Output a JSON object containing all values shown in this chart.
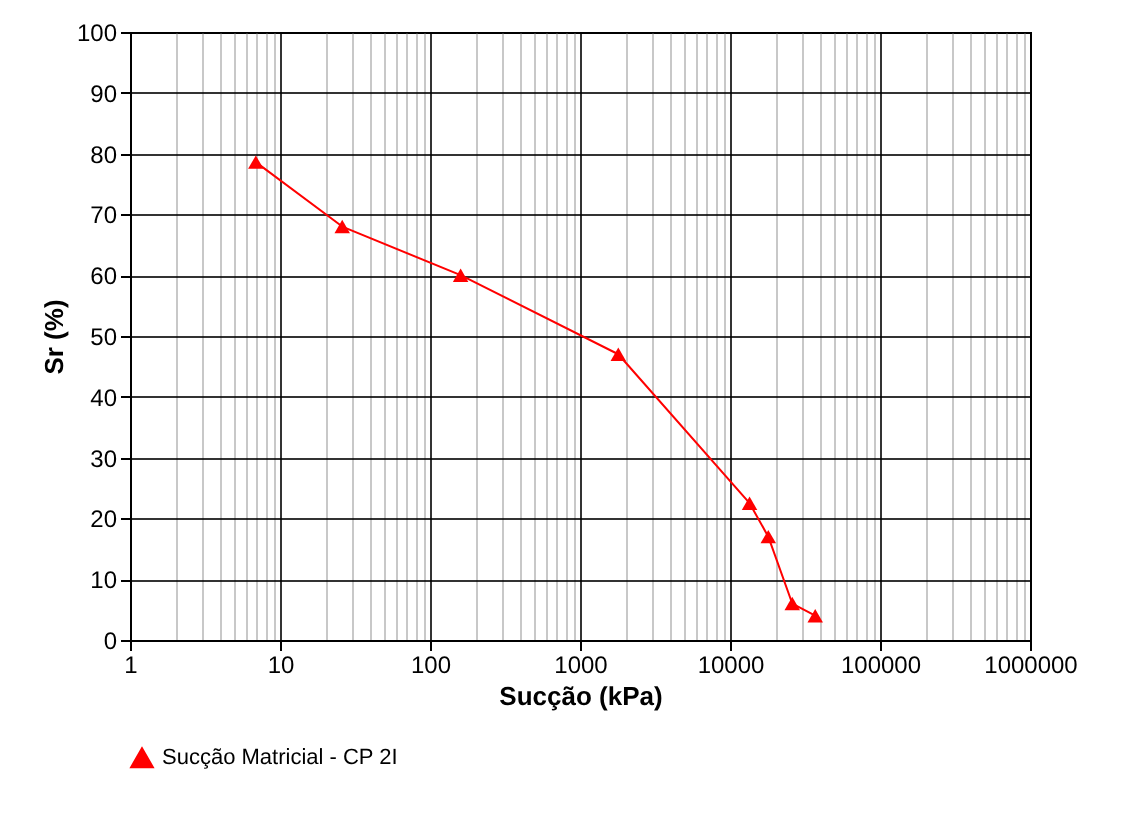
{
  "chart_data": {
    "type": "line",
    "xlabel": "Sucção (kPa)",
    "ylabel": "Sr (%)",
    "x": [
      6.9,
      26,
      160,
      1800,
      13500,
      18000,
      26000,
      37000
    ],
    "series": [
      {
        "name": "Sucção Matricial - CP 2I",
        "color": "#ff0000",
        "values": [
          78.6,
          68,
          60,
          47,
          22.5,
          17,
          6,
          4
        ]
      }
    ],
    "log": "x",
    "xlim": [
      1,
      1000000
    ],
    "xticks": [
      1,
      10,
      100,
      1000,
      10000,
      100000,
      1000000
    ],
    "ylim": [
      0,
      100
    ],
    "yticks": [
      0,
      10,
      20,
      30,
      40,
      50,
      60,
      70,
      80,
      90,
      100
    ],
    "grid": true,
    "legend": "bottom",
    "marker": "triangle",
    "line_style": "solid"
  }
}
